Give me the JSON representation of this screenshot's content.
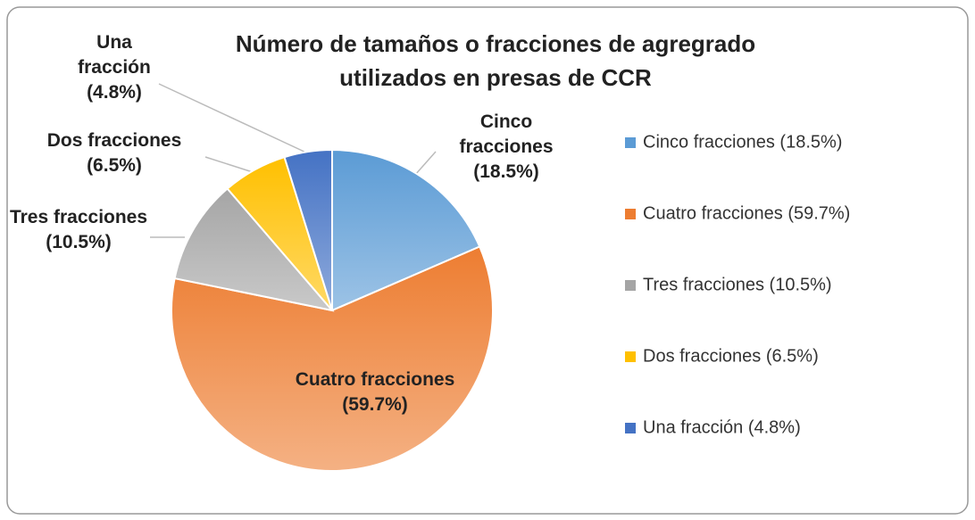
{
  "chart_data": {
    "type": "pie",
    "title": "Número de tamaños o fracciones de agregrado utilizados en presas de CCR",
    "categories": [
      "Cinco fracciones",
      "Cuatro fracciones",
      "Tres fracciones",
      "Dos fracciones",
      "Una fracción"
    ],
    "values": [
      18.5,
      59.7,
      10.5,
      6.5,
      4.8
    ],
    "value_labels": [
      "(18.5%)",
      "(59.7%)",
      "(10.5%)",
      "(6.5%)",
      "(4.8%)"
    ],
    "colors": [
      "#5b9bd5",
      "#ed7d31",
      "#a5a5a5",
      "#ffc000",
      "#4472c4"
    ],
    "legend": "right"
  }
}
